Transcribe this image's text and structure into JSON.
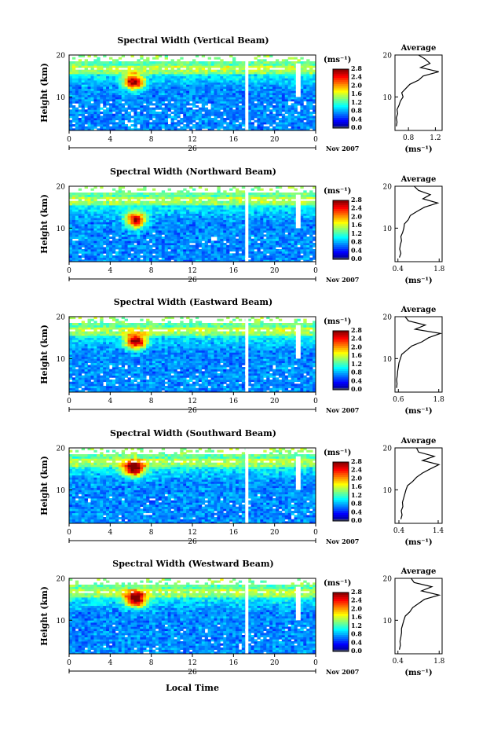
{
  "footer": {
    "xlabel": "Local Time"
  },
  "chart_data": [
    {
      "type": "heatmap",
      "title": "Spectral Width (Vertical Beam)",
      "ylabel": "Height (km)",
      "ylim": [
        2,
        20
      ],
      "yticks": [
        10,
        20
      ],
      "xlim": [
        0,
        24
      ],
      "xticks": [
        "0",
        "4",
        "8",
        "12",
        "16",
        "20",
        "0"
      ],
      "date_label": "26",
      "month_year": "Nov 2007",
      "colorbar": {
        "unit": "(ms⁻¹)",
        "ticks": [
          "2.8",
          "2.4",
          "2.0",
          "1.6",
          "1.2",
          "0.8",
          "0.4",
          "0.0"
        ],
        "range": [
          0,
          2.8
        ]
      },
      "hot_spot": {
        "time": 6.3,
        "height": 13.5
      },
      "gaps": [
        17.3,
        22.3
      ],
      "avg_title": "Average",
      "avg_xticks": [
        "0.8",
        "1.2"
      ],
      "avg_xlim": [
        0.6,
        1.3
      ],
      "avg_xlabel": "(ms⁻¹)",
      "profile_height": [
        3,
        4,
        5,
        6,
        7,
        8,
        9,
        10,
        11,
        12,
        13,
        14,
        15,
        16,
        17,
        18,
        19,
        20
      ],
      "profile_value": [
        0.62,
        0.63,
        0.62,
        0.64,
        0.63,
        0.66,
        0.68,
        0.72,
        0.7,
        0.76,
        0.82,
        0.95,
        1.02,
        1.25,
        0.98,
        1.12,
        1.05,
        0.95
      ]
    },
    {
      "type": "heatmap",
      "title": "Spectral Width (Northward Beam)",
      "ylabel": "Height (km)",
      "ylim": [
        2,
        20
      ],
      "yticks": [
        10,
        20
      ],
      "xlim": [
        0,
        24
      ],
      "xticks": [
        "0",
        "4",
        "8",
        "12",
        "16",
        "20",
        "0"
      ],
      "date_label": "26",
      "month_year": "Nov 2007",
      "colorbar": {
        "unit": "(ms⁻¹)",
        "ticks": [
          "2.8",
          "2.4",
          "2.0",
          "1.6",
          "1.2",
          "0.8",
          "0.4",
          "0.0"
        ],
        "range": [
          0,
          2.8
        ]
      },
      "hot_spot": {
        "time": 6.5,
        "height": 12
      },
      "gaps": [
        17.3,
        22.3
      ],
      "avg_title": "Average",
      "avg_xticks": [
        "0.4",
        "1.8"
      ],
      "avg_xlim": [
        0.3,
        1.9
      ],
      "avg_xlabel": "(ms⁻¹)",
      "profile_height": [
        3,
        4,
        5,
        6,
        7,
        8,
        9,
        10,
        11,
        12,
        13,
        14,
        15,
        16,
        17,
        18,
        19,
        20
      ],
      "profile_value": [
        0.45,
        0.5,
        0.46,
        0.48,
        0.52,
        0.5,
        0.56,
        0.6,
        0.62,
        0.75,
        0.82,
        1.05,
        1.3,
        1.75,
        1.25,
        1.5,
        1.1,
        0.95
      ]
    },
    {
      "type": "heatmap",
      "title": "Spectral Width (Eastward Beam)",
      "ylabel": "Height (km)",
      "ylim": [
        2,
        20
      ],
      "yticks": [
        10,
        20
      ],
      "xlim": [
        0,
        24
      ],
      "xticks": [
        "0",
        "4",
        "8",
        "12",
        "16",
        "20",
        "0"
      ],
      "date_label": "26",
      "month_year": "Nov 2007",
      "colorbar": {
        "unit": "(ms⁻¹)",
        "ticks": [
          "2.8",
          "2.4",
          "2.0",
          "1.6",
          "1.2",
          "0.8",
          "0.4",
          "0.0"
        ],
        "range": [
          0,
          2.8
        ]
      },
      "hot_spot": {
        "time": 6.5,
        "height": 14
      },
      "gaps": [
        17.3,
        22.3
      ],
      "avg_title": "Average",
      "avg_xticks": [
        "0.6",
        "1.8"
      ],
      "avg_xlim": [
        0.5,
        1.9
      ],
      "avg_xlabel": "(ms⁻¹)",
      "profile_height": [
        3,
        4,
        5,
        6,
        7,
        8,
        9,
        10,
        11,
        12,
        13,
        14,
        15,
        16,
        17,
        18,
        19,
        20
      ],
      "profile_value": [
        0.55,
        0.56,
        0.55,
        0.57,
        0.58,
        0.6,
        0.62,
        0.66,
        0.7,
        0.85,
        1.0,
        1.3,
        1.5,
        1.85,
        1.1,
        1.4,
        0.9,
        0.8
      ]
    },
    {
      "type": "heatmap",
      "title": "Spectral Width (Southward Beam)",
      "ylabel": "Height (km)",
      "ylim": [
        2,
        20
      ],
      "yticks": [
        10,
        20
      ],
      "xlim": [
        0,
        24
      ],
      "xticks": [
        "0",
        "4",
        "8",
        "12",
        "16",
        "20",
        "0"
      ],
      "date_label": "26",
      "month_year": "Nov 2007",
      "colorbar": {
        "unit": "(ms⁻¹)",
        "ticks": [
          "2.8",
          "2.4",
          "2.0",
          "1.6",
          "1.2",
          "0.8",
          "0.4",
          "0.0"
        ],
        "range": [
          0,
          2.8
        ]
      },
      "hot_spot": {
        "time": 6.3,
        "height": 15
      },
      "gaps": [
        17.3,
        22.3
      ],
      "avg_title": "Average",
      "avg_xticks": [
        "0.4",
        "1.4"
      ],
      "avg_xlim": [
        0.3,
        1.5
      ],
      "avg_xlabel": "(ms⁻¹)",
      "profile_height": [
        3,
        4,
        5,
        6,
        7,
        8,
        9,
        10,
        11,
        12,
        13,
        14,
        15,
        16,
        17,
        18,
        19,
        20
      ],
      "profile_value": [
        0.45,
        0.48,
        0.46,
        0.5,
        0.49,
        0.52,
        0.55,
        0.58,
        0.62,
        0.75,
        0.85,
        1.0,
        1.2,
        1.42,
        1.0,
        1.3,
        0.9,
        0.85
      ]
    },
    {
      "type": "heatmap",
      "title": "Spectral Width (Westward Beam)",
      "ylabel": "Height (km)",
      "ylim": [
        2,
        20
      ],
      "yticks": [
        10,
        20
      ],
      "xlim": [
        0,
        24
      ],
      "xticks": [
        "0",
        "4",
        "8",
        "12",
        "16",
        "20",
        "0"
      ],
      "date_label": "26",
      "month_year": "Nov 2007",
      "colorbar": {
        "unit": "(ms⁻¹)",
        "ticks": [
          "2.8",
          "2.4",
          "2.0",
          "1.6",
          "1.2",
          "0.8",
          "0.4",
          "0.0"
        ],
        "range": [
          0,
          2.8
        ]
      },
      "hot_spot": {
        "time": 6.5,
        "height": 15
      },
      "gaps": [
        17.3,
        22.3
      ],
      "avg_title": "Average",
      "avg_xticks": [
        "0.4",
        "1.8"
      ],
      "avg_xlim": [
        0.3,
        1.9
      ],
      "avg_xlabel": "(ms⁻¹)",
      "profile_height": [
        3,
        4,
        5,
        6,
        7,
        8,
        9,
        10,
        11,
        12,
        13,
        14,
        15,
        16,
        17,
        18,
        19,
        20
      ],
      "profile_value": [
        0.45,
        0.48,
        0.47,
        0.5,
        0.52,
        0.52,
        0.56,
        0.6,
        0.65,
        0.8,
        0.9,
        1.1,
        1.3,
        1.8,
        1.2,
        1.55,
        0.95,
        0.85
      ]
    }
  ]
}
